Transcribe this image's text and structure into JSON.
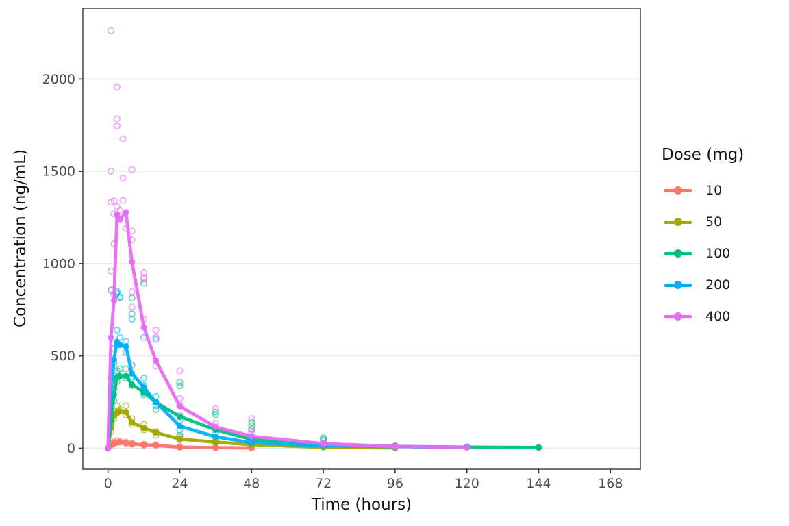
{
  "chart_data": {
    "type": "line",
    "title": "",
    "xlabel": "Time (hours)",
    "ylabel": "Concentration (ng/mL)",
    "x_ticks": [
      0,
      24,
      48,
      72,
      96,
      120,
      144,
      168
    ],
    "y_ticks": [
      0,
      500,
      1000,
      1500,
      2000
    ],
    "xlim": [
      -8,
      178
    ],
    "ylim": [
      -113,
      2383
    ],
    "grid": "horizontal-major-only",
    "legend": {
      "title": "Dose (mg)",
      "position": "right",
      "entries": [
        "10",
        "50",
        "100",
        "200",
        "400"
      ]
    },
    "colors": {
      "background": "#FFFFFF",
      "panel_border": "#4D4D4D",
      "gridline": "#E8E8E8",
      "tick_mark": "#333333",
      "tick_label": "#4D4D4D",
      "axis_title": "#111111",
      "dose_10": "#F8766D",
      "dose_50": "#A3A500",
      "dose_100": "#00BF7D",
      "dose_200": "#00B0F6",
      "dose_400": "#E76BF3"
    },
    "series": [
      {
        "name": "10",
        "color": "#F8766D",
        "t": [
          0,
          1,
          2,
          3,
          4,
          6,
          8,
          12,
          16,
          24,
          36,
          48
        ],
        "mean": [
          0,
          18,
          26,
          31,
          32,
          29,
          24,
          19,
          16,
          6,
          3,
          2
        ],
        "scatter": [
          [
            1,
            25
          ],
          [
            1,
            15
          ],
          [
            2,
            35
          ],
          [
            2,
            28
          ],
          [
            3,
            42
          ],
          [
            3,
            32
          ],
          [
            4,
            36
          ],
          [
            6,
            33
          ],
          [
            6,
            26
          ],
          [
            8,
            28
          ],
          [
            8,
            22
          ],
          [
            12,
            22
          ],
          [
            12,
            16
          ],
          [
            16,
            18
          ],
          [
            24,
            8
          ],
          [
            24,
            5
          ],
          [
            36,
            4
          ],
          [
            48,
            2
          ]
        ]
      },
      {
        "name": "50",
        "color": "#A3A500",
        "t": [
          0,
          1,
          2,
          3,
          4,
          6,
          8,
          12,
          16,
          24,
          36,
          48,
          72,
          96
        ],
        "mean": [
          0,
          110,
          175,
          192,
          200,
          196,
          140,
          110,
          85,
          50,
          33,
          20,
          5,
          2
        ],
        "scatter": [
          [
            1,
            130
          ],
          [
            1,
            90
          ],
          [
            2,
            200
          ],
          [
            2,
            160
          ],
          [
            3,
            230
          ],
          [
            3,
            190
          ],
          [
            4,
            210
          ],
          [
            6,
            230
          ],
          [
            6,
            180
          ],
          [
            8,
            160
          ],
          [
            8,
            130
          ],
          [
            12,
            130
          ],
          [
            12,
            100
          ],
          [
            16,
            90
          ],
          [
            16,
            70
          ],
          [
            24,
            60
          ],
          [
            24,
            45
          ],
          [
            36,
            40
          ],
          [
            36,
            28
          ],
          [
            48,
            22
          ],
          [
            48,
            15
          ],
          [
            72,
            6
          ],
          [
            96,
            3
          ]
        ]
      },
      {
        "name": "100",
        "color": "#00BF7D",
        "t": [
          0,
          1,
          2,
          3,
          4,
          6,
          8,
          12,
          16,
          24,
          36,
          48,
          72,
          96,
          120,
          144
        ],
        "mean": [
          0,
          150,
          290,
          385,
          390,
          392,
          345,
          305,
          248,
          172,
          100,
          48,
          18,
          10,
          6,
          4
        ],
        "scatter": [
          [
            1,
            180
          ],
          [
            1,
            130
          ],
          [
            2,
            320
          ],
          [
            2,
            260
          ],
          [
            3,
            420
          ],
          [
            3,
            360
          ],
          [
            4,
            430
          ],
          [
            4,
            817
          ],
          [
            6,
            430
          ],
          [
            6,
            380
          ],
          [
            8,
            390
          ],
          [
            8,
            340
          ],
          [
            8,
            814
          ],
          [
            8,
            728
          ],
          [
            12,
            340
          ],
          [
            12,
            290
          ],
          [
            12,
            894
          ],
          [
            16,
            251
          ],
          [
            16,
            210
          ],
          [
            24,
            357
          ],
          [
            24,
            338
          ],
          [
            24,
            171
          ],
          [
            24,
            70
          ],
          [
            36,
            196
          ],
          [
            36,
            181
          ],
          [
            48,
            140
          ],
          [
            48,
            122
          ],
          [
            48,
            103
          ],
          [
            72,
            57
          ],
          [
            72,
            48
          ],
          [
            72,
            41
          ],
          [
            96,
            14
          ],
          [
            120,
            8
          ],
          [
            144,
            5
          ]
        ]
      },
      {
        "name": "200",
        "color": "#00B0F6",
        "t": [
          0,
          1,
          2,
          3,
          4,
          6,
          8,
          12,
          16,
          24,
          36,
          48,
          72,
          96,
          120
        ],
        "mean": [
          0,
          300,
          480,
          577,
          560,
          552,
          405,
          330,
          250,
          120,
          62,
          30,
          14,
          9,
          5
        ],
        "scatter": [
          [
            1,
            380
          ],
          [
            1,
            320
          ],
          [
            1,
            250
          ],
          [
            1,
            857
          ],
          [
            2,
            540
          ],
          [
            2,
            460
          ],
          [
            2,
            420
          ],
          [
            3,
            850
          ],
          [
            3,
            839
          ],
          [
            3,
            640
          ],
          [
            3,
            560
          ],
          [
            4,
            820
          ],
          [
            4,
            600
          ],
          [
            6,
            580
          ],
          [
            6,
            520
          ],
          [
            8,
            700
          ],
          [
            8,
            450
          ],
          [
            8,
            380
          ],
          [
            12,
            600
          ],
          [
            12,
            380
          ],
          [
            12,
            300
          ],
          [
            16,
            590
          ],
          [
            16,
            280
          ],
          [
            16,
            230
          ],
          [
            24,
            150
          ],
          [
            24,
            99
          ],
          [
            36,
            80
          ],
          [
            36,
            60
          ],
          [
            48,
            40
          ],
          [
            48,
            28
          ],
          [
            72,
            18
          ],
          [
            96,
            12
          ],
          [
            120,
            6
          ]
        ]
      },
      {
        "name": "400",
        "color": "#E76BF3",
        "t": [
          0,
          1,
          2,
          3,
          4,
          6,
          8,
          12,
          16,
          24,
          36,
          48,
          72,
          96,
          120
        ],
        "mean": [
          0,
          600,
          800,
          1265,
          1240,
          1278,
          1010,
          655,
          475,
          228,
          115,
          65,
          25,
          10,
          5
        ],
        "scatter": [
          [
            1,
            2262
          ],
          [
            3,
            1956
          ],
          [
            3,
            1785
          ],
          [
            3,
            1745
          ],
          [
            5,
            1676
          ],
          [
            1,
            1501
          ],
          [
            8,
            1509
          ],
          [
            5,
            1463
          ],
          [
            1,
            1333
          ],
          [
            2,
            1340
          ],
          [
            5,
            1342
          ],
          [
            3,
            1308
          ],
          [
            4,
            1290
          ],
          [
            2,
            1270
          ],
          [
            8,
            1176
          ],
          [
            8,
            1129
          ],
          [
            2,
            1107
          ],
          [
            8,
            849
          ],
          [
            8,
            765
          ],
          [
            12,
            951
          ],
          [
            12,
            925
          ],
          [
            12,
            915
          ],
          [
            6,
            1190
          ],
          [
            1,
            960
          ],
          [
            1,
            855
          ],
          [
            2,
            830
          ],
          [
            12,
            700
          ],
          [
            16,
            640
          ],
          [
            16,
            600
          ],
          [
            16,
            445
          ],
          [
            24,
            420
          ],
          [
            24,
            270
          ],
          [
            24,
            239
          ],
          [
            24,
            181
          ],
          [
            36,
            215
          ],
          [
            36,
            136
          ],
          [
            36,
            116
          ],
          [
            48,
            160
          ],
          [
            48,
            101
          ],
          [
            48,
            85
          ],
          [
            72,
            30
          ],
          [
            72,
            22
          ],
          [
            96,
            12
          ],
          [
            120,
            6
          ]
        ]
      }
    ]
  }
}
